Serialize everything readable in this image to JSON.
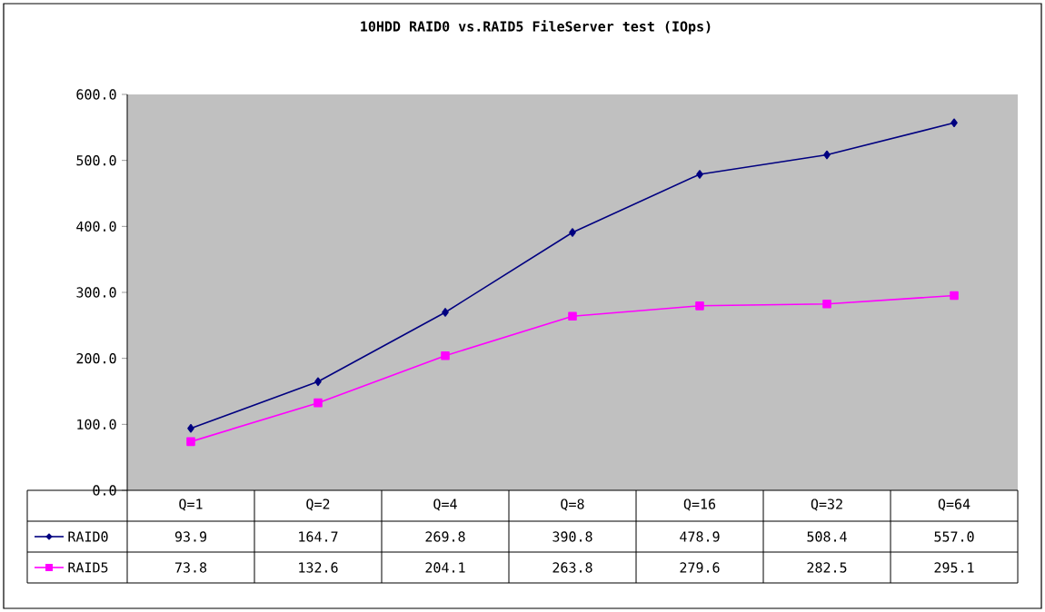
{
  "chart_data": {
    "type": "line",
    "title": "10HDD RAID0 vs.RAID5 FileServer test (IOps)",
    "categories": [
      "Q=1",
      "Q=2",
      "Q=4",
      "Q=8",
      "Q=16",
      "Q=32",
      "Q=64"
    ],
    "series": [
      {
        "name": "RAID0",
        "color": "#000080",
        "marker": "diamond",
        "values": [
          93.9,
          164.7,
          269.8,
          390.8,
          478.9,
          508.4,
          557.0
        ],
        "value_labels": [
          "93.9",
          "164.7",
          "269.8",
          "390.8",
          "478.9",
          "508.4",
          "557.0"
        ]
      },
      {
        "name": "RAID5",
        "color": "#ff00ff",
        "marker": "square",
        "values": [
          73.8,
          132.6,
          204.1,
          263.8,
          279.6,
          282.5,
          295.1
        ],
        "value_labels": [
          "73.8",
          "132.6",
          "204.1",
          "263.8",
          "279.6",
          "282.5",
          "295.1"
        ]
      }
    ],
    "ylim": [
      0,
      600
    ],
    "yticks": [
      {
        "value": 0,
        "label": "0.0"
      },
      {
        "value": 100,
        "label": "100.0"
      },
      {
        "value": 200,
        "label": "200.0"
      },
      {
        "value": 300,
        "label": "300.0"
      },
      {
        "value": 400,
        "label": "400.0"
      },
      {
        "value": 500,
        "label": "500.0"
      },
      {
        "value": 600,
        "label": "600.0"
      }
    ],
    "legend": "bottom",
    "grid": false
  }
}
